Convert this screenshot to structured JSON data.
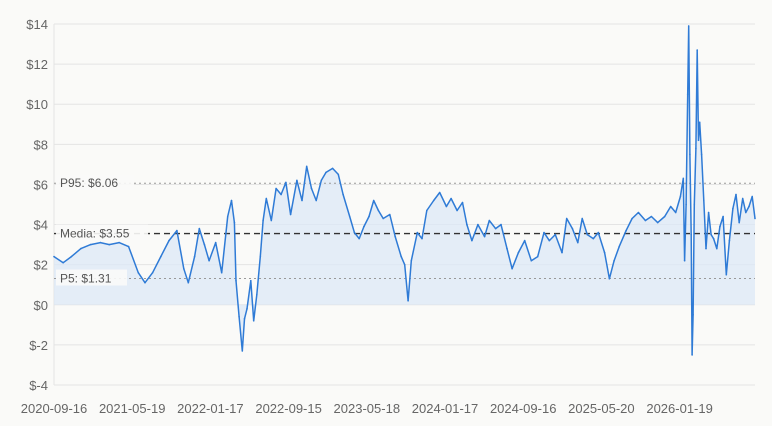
{
  "chart_data": {
    "type": "line",
    "title": "",
    "xlabel": "",
    "ylabel": "",
    "ylim": [
      -4,
      14
    ],
    "yticks": [
      -4,
      -2,
      0,
      2,
      4,
      6,
      8,
      10,
      12,
      14
    ],
    "ytick_labels": [
      "$-4",
      "$-2",
      "$0",
      "$2",
      "$4",
      "$6",
      "$8",
      "$10",
      "$12",
      "$14"
    ],
    "xlim": [
      "2020-09-16",
      "2026-10-14"
    ],
    "xtick_labels": [
      "2020-09-16",
      "2021-05-19",
      "2022-01-17",
      "2022-09-15",
      "2023-05-18",
      "2024-01-17",
      "2024-09-16",
      "2025-05-20",
      "2026-01-19"
    ],
    "grid": true,
    "legend": "none",
    "colors": {
      "line": "#2f7bd6",
      "fill": "#dce8f7",
      "grid": "#e4e4e4",
      "median": "#333333",
      "percentile": "#999999"
    },
    "reference_lines": [
      {
        "label": "P95: $6.06",
        "value": 6.06,
        "style": "dotted"
      },
      {
        "label": "Media: $3.55",
        "value": 3.55,
        "style": "dashed"
      },
      {
        "label": "P5: $1.31",
        "value": 1.31,
        "style": "dotted"
      }
    ],
    "series": [
      {
        "values": [
          [
            "2020-09-16",
            2.4
          ],
          [
            "2020-10-15",
            2.1
          ],
          [
            "2020-11-10",
            2.4
          ],
          [
            "2020-12-10",
            2.8
          ],
          [
            "2021-01-10",
            3.0
          ],
          [
            "2021-02-10",
            3.1
          ],
          [
            "2021-03-10",
            3.0
          ],
          [
            "2021-04-10",
            3.1
          ],
          [
            "2021-05-10",
            2.9
          ],
          [
            "2021-06-10",
            1.6
          ],
          [
            "2021-07-01",
            1.1
          ],
          [
            "2021-07-25",
            1.6
          ],
          [
            "2021-08-20",
            2.4
          ],
          [
            "2021-09-15",
            3.2
          ],
          [
            "2021-10-10",
            3.7
          ],
          [
            "2021-11-01",
            1.8
          ],
          [
            "2021-11-15",
            1.1
          ],
          [
            "2021-12-05",
            2.4
          ],
          [
            "2021-12-20",
            3.8
          ],
          [
            "2022-01-05",
            3.0
          ],
          [
            "2022-01-20",
            2.2
          ],
          [
            "2022-02-10",
            3.1
          ],
          [
            "2022-03-01",
            1.6
          ],
          [
            "2022-03-20",
            4.4
          ],
          [
            "2022-04-01",
            5.2
          ],
          [
            "2022-04-10",
            4.1
          ],
          [
            "2022-04-15",
            1.2
          ],
          [
            "2022-04-25",
            -0.6
          ],
          [
            "2022-05-05",
            -2.3
          ],
          [
            "2022-05-12",
            -0.7
          ],
          [
            "2022-05-20",
            -0.2
          ],
          [
            "2022-06-01",
            1.2
          ],
          [
            "2022-06-10",
            -0.8
          ],
          [
            "2022-06-20",
            0.5
          ],
          [
            "2022-07-01",
            2.4
          ],
          [
            "2022-07-10",
            4.2
          ],
          [
            "2022-07-20",
            5.3
          ],
          [
            "2022-08-05",
            4.2
          ],
          [
            "2022-08-20",
            5.8
          ],
          [
            "2022-09-05",
            5.5
          ],
          [
            "2022-09-20",
            6.1
          ],
          [
            "2022-10-05",
            4.5
          ],
          [
            "2022-10-25",
            6.2
          ],
          [
            "2022-11-10",
            5.2
          ],
          [
            "2022-11-25",
            6.9
          ],
          [
            "2022-12-10",
            5.8
          ],
          [
            "2022-12-25",
            5.2
          ],
          [
            "2023-01-10",
            6.2
          ],
          [
            "2023-01-25",
            6.6
          ],
          [
            "2023-02-15",
            6.8
          ],
          [
            "2023-03-05",
            6.5
          ],
          [
            "2023-03-20",
            5.5
          ],
          [
            "2023-04-10",
            4.4
          ],
          [
            "2023-04-25",
            3.6
          ],
          [
            "2023-05-10",
            3.3
          ],
          [
            "2023-05-25",
            3.9
          ],
          [
            "2023-06-10",
            4.4
          ],
          [
            "2023-06-25",
            5.2
          ],
          [
            "2023-07-10",
            4.7
          ],
          [
            "2023-07-25",
            4.3
          ],
          [
            "2023-08-15",
            4.5
          ],
          [
            "2023-09-01",
            3.4
          ],
          [
            "2023-09-20",
            2.4
          ],
          [
            "2023-10-01",
            2.0
          ],
          [
            "2023-10-12",
            0.2
          ],
          [
            "2023-10-22",
            2.2
          ],
          [
            "2023-11-10",
            3.6
          ],
          [
            "2023-11-25",
            3.3
          ],
          [
            "2023-12-10",
            4.7
          ],
          [
            "2024-01-01",
            5.2
          ],
          [
            "2024-01-20",
            5.6
          ],
          [
            "2024-02-10",
            4.9
          ],
          [
            "2024-02-25",
            5.3
          ],
          [
            "2024-03-15",
            4.7
          ],
          [
            "2024-04-01",
            5.1
          ],
          [
            "2024-04-15",
            4.0
          ],
          [
            "2024-05-01",
            3.2
          ],
          [
            "2024-05-20",
            4.0
          ],
          [
            "2024-06-10",
            3.4
          ],
          [
            "2024-06-25",
            4.2
          ],
          [
            "2024-07-15",
            3.8
          ],
          [
            "2024-08-01",
            4.0
          ],
          [
            "2024-08-20",
            2.8
          ],
          [
            "2024-09-05",
            1.8
          ],
          [
            "2024-09-25",
            2.6
          ],
          [
            "2024-10-15",
            3.2
          ],
          [
            "2024-11-05",
            2.2
          ],
          [
            "2024-11-25",
            2.4
          ],
          [
            "2024-12-15",
            3.6
          ],
          [
            "2025-01-01",
            3.2
          ],
          [
            "2025-01-20",
            3.5
          ],
          [
            "2025-02-10",
            2.6
          ],
          [
            "2025-02-25",
            4.3
          ],
          [
            "2025-03-15",
            3.8
          ],
          [
            "2025-04-01",
            3.1
          ],
          [
            "2025-04-15",
            4.3
          ],
          [
            "2025-05-01",
            3.5
          ],
          [
            "2025-05-20",
            3.3
          ],
          [
            "2025-06-05",
            3.6
          ],
          [
            "2025-06-25",
            2.6
          ],
          [
            "2025-07-10",
            1.3
          ],
          [
            "2025-07-25",
            2.2
          ],
          [
            "2025-08-10",
            2.9
          ],
          [
            "2025-09-01",
            3.7
          ],
          [
            "2025-09-20",
            4.3
          ],
          [
            "2025-10-10",
            4.6
          ],
          [
            "2025-11-01",
            4.2
          ],
          [
            "2025-11-20",
            4.4
          ],
          [
            "2025-12-10",
            4.1
          ],
          [
            "2026-01-01",
            4.4
          ],
          [
            "2026-01-20",
            4.9
          ],
          [
            "2026-02-05",
            4.6
          ],
          [
            "2026-02-20",
            5.4
          ],
          [
            "2026-03-01",
            6.3
          ],
          [
            "2026-03-05",
            2.2
          ],
          [
            "2026-03-10",
            5.0
          ],
          [
            "2026-03-15",
            10.5
          ],
          [
            "2026-03-18",
            13.9
          ],
          [
            "2026-03-22",
            7.5
          ],
          [
            "2026-03-26",
            3.5
          ],
          [
            "2026-03-29",
            -2.5
          ],
          [
            "2026-04-01",
            -0.5
          ],
          [
            "2026-04-05",
            5.0
          ],
          [
            "2026-04-10",
            7.8
          ],
          [
            "2026-04-14",
            12.7
          ],
          [
            "2026-04-18",
            8.2
          ],
          [
            "2026-04-22",
            9.1
          ],
          [
            "2026-04-28",
            7.5
          ],
          [
            "2026-05-05",
            5.2
          ],
          [
            "2026-05-12",
            2.8
          ],
          [
            "2026-05-20",
            4.6
          ],
          [
            "2026-05-28",
            3.5
          ],
          [
            "2026-06-05",
            3.3
          ],
          [
            "2026-06-15",
            2.8
          ],
          [
            "2026-06-25",
            3.9
          ],
          [
            "2026-07-05",
            4.4
          ],
          [
            "2026-07-15",
            1.5
          ],
          [
            "2026-07-25",
            3.2
          ],
          [
            "2026-08-05",
            4.8
          ],
          [
            "2026-08-15",
            5.5
          ],
          [
            "2026-08-25",
            4.1
          ],
          [
            "2026-09-05",
            5.3
          ],
          [
            "2026-09-15",
            4.6
          ],
          [
            "2026-09-25",
            4.9
          ],
          [
            "2026-10-05",
            5.4
          ],
          [
            "2026-10-14",
            4.3
          ]
        ]
      }
    ]
  }
}
